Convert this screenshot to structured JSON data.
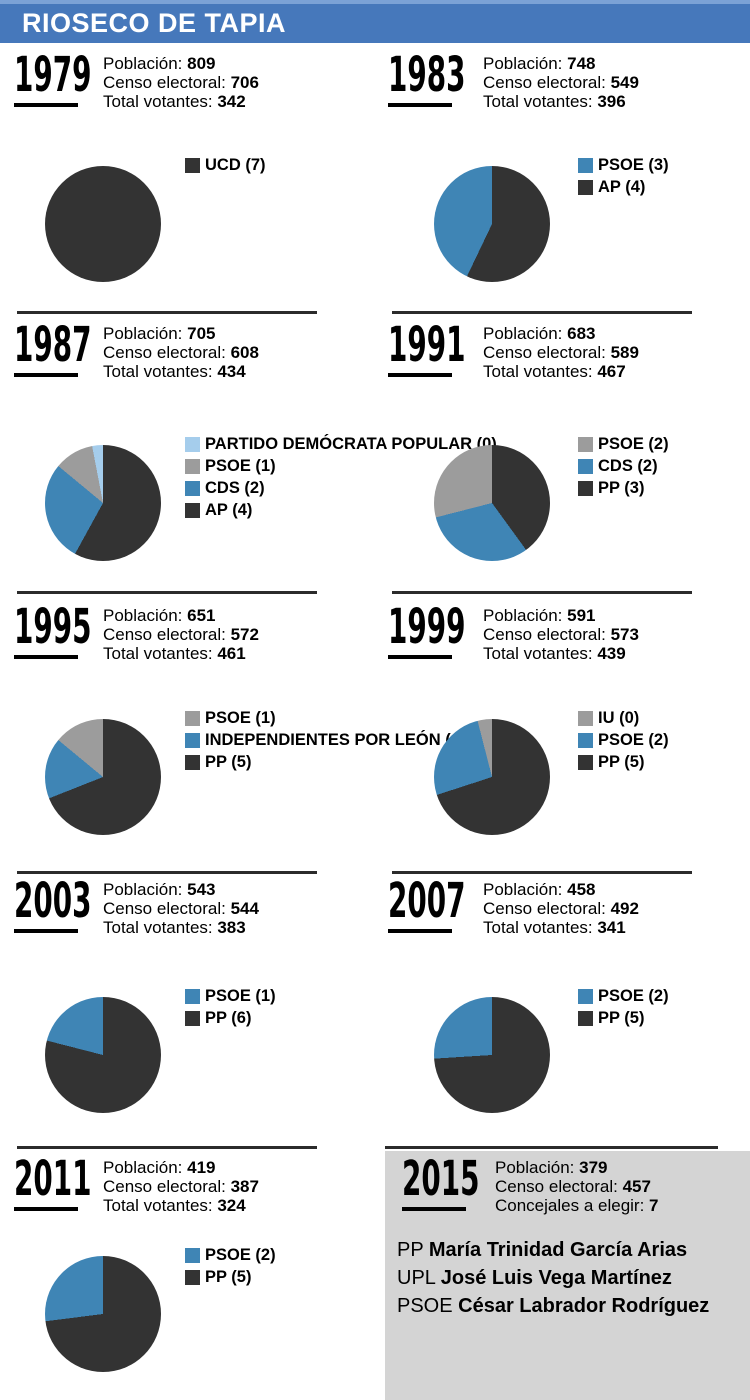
{
  "title": "RIOSECO DE TAPIA",
  "colors": {
    "header_strip": "#7ba2d6",
    "header_bar": "#4678bb",
    "dark": "#333333",
    "blue": "#3f85b5",
    "gray": "#9c9c9c",
    "light_blue": "#a5cdec",
    "panel_gray": "#d4d4d4",
    "divider": "#2b2b2b",
    "title_text": "#ffffff"
  },
  "blocks": [
    {
      "year": "1979",
      "stats": [
        {
          "label": "Población:",
          "value": "809"
        },
        {
          "label": "Censo electoral:",
          "value": "706"
        },
        {
          "label": "Total votantes:",
          "value": "342"
        }
      ]
    },
    {
      "year": "1983",
      "stats": [
        {
          "label": "Población:",
          "value": "748"
        },
        {
          "label": "Censo electoral:",
          "value": "549"
        },
        {
          "label": "Total votantes:",
          "value": "396"
        }
      ]
    },
    {
      "year": "1987",
      "stats": [
        {
          "label": "Población:",
          "value": "705"
        },
        {
          "label": "Censo electoral:",
          "value": "608"
        },
        {
          "label": "Total votantes:",
          "value": "434"
        }
      ]
    },
    {
      "year": "1991",
      "stats": [
        {
          "label": "Población:",
          "value": "683"
        },
        {
          "label": "Censo electoral:",
          "value": "589"
        },
        {
          "label": "Total votantes:",
          "value": "467"
        }
      ]
    },
    {
      "year": "1995",
      "stats": [
        {
          "label": "Población:",
          "value": "651"
        },
        {
          "label": "Censo electoral:",
          "value": "572"
        },
        {
          "label": "Total votantes:",
          "value": "461"
        }
      ]
    },
    {
      "year": "1999",
      "stats": [
        {
          "label": "Población:",
          "value": "591"
        },
        {
          "label": "Censo electoral:",
          "value": "573"
        },
        {
          "label": "Total votantes:",
          "value": "439"
        }
      ]
    },
    {
      "year": "2003",
      "stats": [
        {
          "label": "Población:",
          "value": "543"
        },
        {
          "label": "Censo electoral:",
          "value": "544"
        },
        {
          "label": "Total votantes:",
          "value": "383"
        }
      ]
    },
    {
      "year": "2007",
      "stats": [
        {
          "label": "Población:",
          "value": "458"
        },
        {
          "label": "Censo electoral:",
          "value": "492"
        },
        {
          "label": "Total votantes:",
          "value": "341"
        }
      ]
    },
    {
      "year": "2011",
      "stats": [
        {
          "label": "Población:",
          "value": "419"
        },
        {
          "label": "Censo electoral:",
          "value": "387"
        },
        {
          "label": "Total votantes:",
          "value": "324"
        }
      ]
    },
    {
      "year": "2015",
      "stats": [
        {
          "label": "Población:",
          "value": "379"
        },
        {
          "label": "Censo electoral:",
          "value": "457"
        },
        {
          "label": "Concejales a elegir:",
          "value": "7"
        }
      ],
      "candidates": [
        {
          "party": "PP",
          "name": "María Trinidad García Arias"
        },
        {
          "party": "UPL",
          "name": "José Luis Vega Martínez"
        },
        {
          "party": "PSOE",
          "name": "César Labrador Rodríguez"
        }
      ]
    }
  ],
  "chart_data": [
    {
      "type": "pie",
      "title": "1979",
      "slices": [
        {
          "label": "UCD (7)",
          "party": "UCD",
          "seats": 7,
          "pct": 100,
          "color": "dark"
        }
      ]
    },
    {
      "type": "pie",
      "title": "1983",
      "slices": [
        {
          "label": "PSOE (3)",
          "party": "PSOE",
          "seats": 3,
          "pct": 42.9,
          "color": "blue"
        },
        {
          "label": "AP (4)",
          "party": "AP",
          "seats": 4,
          "pct": 57.1,
          "color": "dark"
        }
      ]
    },
    {
      "type": "pie",
      "title": "1987",
      "slices": [
        {
          "label": "PARTIDO DEMÓCRATA POPULAR (0)",
          "party": "PARTIDO DEMÓCRATA POPULAR",
          "seats": 0,
          "pct": 3,
          "color": "light_blue"
        },
        {
          "label": "PSOE (1)",
          "party": "PSOE",
          "seats": 1,
          "pct": 11,
          "color": "gray"
        },
        {
          "label": "CDS (2)",
          "party": "CDS",
          "seats": 2,
          "pct": 28,
          "color": "blue"
        },
        {
          "label": "AP (4)",
          "party": "AP",
          "seats": 4,
          "pct": 58,
          "color": "dark"
        }
      ]
    },
    {
      "type": "pie",
      "title": "1991",
      "slices": [
        {
          "label": "PSOE (2)",
          "party": "PSOE",
          "seats": 2,
          "pct": 29,
          "color": "gray"
        },
        {
          "label": "CDS (2)",
          "party": "CDS",
          "seats": 2,
          "pct": 31,
          "color": "blue"
        },
        {
          "label": "PP (3)",
          "party": "PP",
          "seats": 3,
          "pct": 40,
          "color": "dark"
        }
      ]
    },
    {
      "type": "pie",
      "title": "1995",
      "slices": [
        {
          "label": "PSOE (1)",
          "party": "PSOE",
          "seats": 1,
          "pct": 14,
          "color": "gray"
        },
        {
          "label": "INDEPENDIENTES POR LEÓN (1)",
          "party": "INDEPENDIENTES POR LEÓN",
          "seats": 1,
          "pct": 17,
          "color": "blue"
        },
        {
          "label": "PP (5)",
          "party": "PP",
          "seats": 5,
          "pct": 69,
          "color": "dark"
        }
      ]
    },
    {
      "type": "pie",
      "title": "1999",
      "slices": [
        {
          "label": "IU (0)",
          "party": "IU",
          "seats": 0,
          "pct": 4,
          "color": "gray"
        },
        {
          "label": "PSOE (2)",
          "party": "PSOE",
          "seats": 2,
          "pct": 26,
          "color": "blue"
        },
        {
          "label": "PP (5)",
          "party": "PP",
          "seats": 5,
          "pct": 70,
          "color": "dark"
        }
      ]
    },
    {
      "type": "pie",
      "title": "2003",
      "slices": [
        {
          "label": "PSOE (1)",
          "party": "PSOE",
          "seats": 1,
          "pct": 21,
          "color": "blue"
        },
        {
          "label": "PP (6)",
          "party": "PP",
          "seats": 6,
          "pct": 79,
          "color": "dark"
        }
      ]
    },
    {
      "type": "pie",
      "title": "2007",
      "slices": [
        {
          "label": "PSOE (2)",
          "party": "PSOE",
          "seats": 2,
          "pct": 26,
          "color": "blue"
        },
        {
          "label": "PP (5)",
          "party": "PP",
          "seats": 5,
          "pct": 74,
          "color": "dark"
        }
      ]
    },
    {
      "type": "pie",
      "title": "2011",
      "slices": [
        {
          "label": "PSOE (2)",
          "party": "PSOE",
          "seats": 2,
          "pct": 27,
          "color": "blue"
        },
        {
          "label": "PP (5)",
          "party": "PP",
          "seats": 5,
          "pct": 73,
          "color": "dark"
        }
      ]
    }
  ]
}
